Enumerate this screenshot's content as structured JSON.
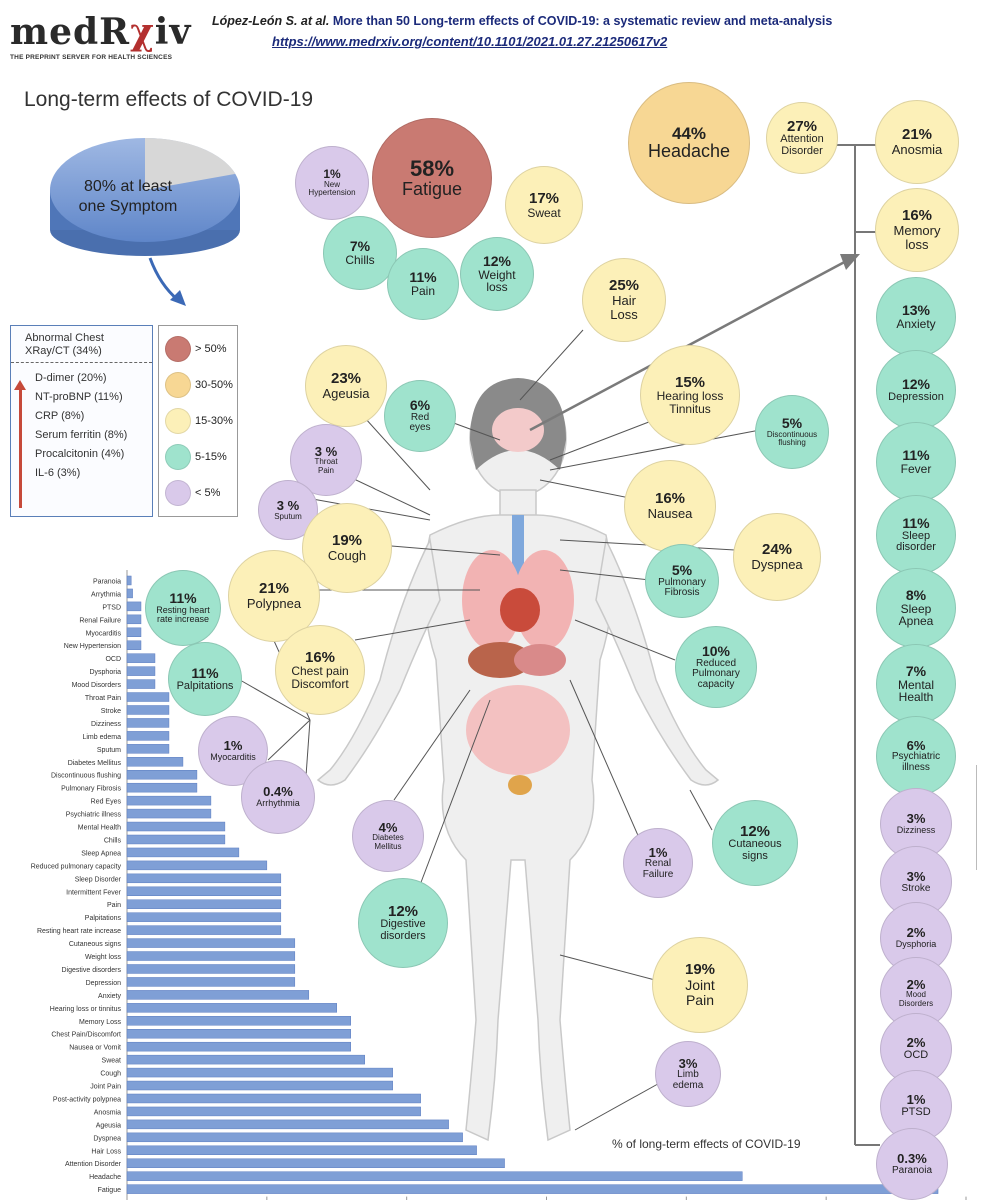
{
  "header": {
    "logo_prefix": "medR",
    "logo_accent": "χ",
    "logo_suffix": "iv",
    "logo_tagline": "THE PREPRINT SERVER FOR HEALTH SCIENCES",
    "author": "López-León S. at al.",
    "paper_title": "More than 50 Long-term effects of COVID-19: a systematic review and meta-analysis",
    "url": "https://www.medrxiv.org/content/10.1101/2021.01.27.21250617v2"
  },
  "page_title": "Long-term effects of COVID-19",
  "pie": {
    "label": "80% at least\none Symptom",
    "value": 80
  },
  "legend": {
    "top_item": "Abnormal Chest\nXRay/CT (34%)",
    "items": [
      "D-dimer (20%)",
      "NT-proBNP (11%)",
      "CRP (8%)",
      "Serum ferritin (8%)",
      "Procalcitonin (4%)",
      "IL-6 (3%)"
    ]
  },
  "scale": [
    {
      "label": "> 50%",
      "color": "#c97a72"
    },
    {
      "label": "30-50%",
      "color": "#f7d794"
    },
    {
      "label": "15-30%",
      "color": "#fcf0b8"
    },
    {
      "label": "5-15%",
      "color": "#9fe3cd"
    },
    {
      "label": "< 5%",
      "color": "#d9c9ea"
    }
  ],
  "colors": {
    "bar": "#7f9fd6",
    "bar_edge": "#5b7cc0",
    "axis": "#999999",
    "arrow": "#7a7a7a"
  },
  "footnote": "% of long-term effects of COVID-19",
  "bubbles": [
    {
      "pct": "58%",
      "label": "Fatigue",
      "cat": ">50"
    },
    {
      "pct": "44%",
      "label": "Headache",
      "cat": "30-50"
    },
    {
      "pct": "27%",
      "label": "Attention\nDisorder",
      "cat": "15-30"
    },
    {
      "pct": "21%",
      "label": "Anosmia",
      "cat": "15-30"
    },
    {
      "pct": "16%",
      "label": "Memory\nloss",
      "cat": "15-30"
    },
    {
      "pct": "13%",
      "label": "Anxiety",
      "cat": "5-15"
    },
    {
      "pct": "12%",
      "label": "Depression",
      "cat": "5-15"
    },
    {
      "pct": "11%",
      "label": "Fever",
      "cat": "5-15"
    },
    {
      "pct": "11%",
      "label": "Sleep\ndisorder",
      "cat": "5-15"
    },
    {
      "pct": "8%",
      "label": "Sleep\nApnea",
      "cat": "5-15"
    },
    {
      "pct": "7%",
      "label": "Mental\nHealth",
      "cat": "5-15"
    },
    {
      "pct": "6%",
      "label": "Psychiatric\nillness",
      "cat": "5-15"
    },
    {
      "pct": "3%",
      "label": "Dizziness",
      "cat": "<5"
    },
    {
      "pct": "3%",
      "label": "Stroke",
      "cat": "<5"
    },
    {
      "pct": "2%",
      "label": "Dysphoria",
      "cat": "<5"
    },
    {
      "pct": "2%",
      "label": "Mood\nDisorders",
      "cat": "<5"
    },
    {
      "pct": "2%",
      "label": "OCD",
      "cat": "<5"
    },
    {
      "pct": "1%",
      "label": "PTSD",
      "cat": "<5"
    },
    {
      "pct": "0.3%",
      "label": "Paranoia",
      "cat": "<5"
    },
    {
      "pct": "1%",
      "label": "New\nHypertension",
      "cat": "<5"
    },
    {
      "pct": "17%",
      "label": "Sweat",
      "cat": "15-30"
    },
    {
      "pct": "7%",
      "label": "Chills",
      "cat": "5-15"
    },
    {
      "pct": "11%",
      "label": "Pain",
      "cat": "5-15"
    },
    {
      "pct": "12%",
      "label": "Weight\nloss",
      "cat": "5-15"
    },
    {
      "pct": "25%",
      "label": "Hair\nLoss",
      "cat": "15-30"
    },
    {
      "pct": "23%",
      "label": "Ageusia",
      "cat": "15-30"
    },
    {
      "pct": "6%",
      "label": "Red\neyes",
      "cat": "5-15"
    },
    {
      "pct": "15%",
      "label": "Hearing loss\nTinnitus",
      "cat": "15-30"
    },
    {
      "pct": "5%",
      "label": "Discontinuous\nflushing",
      "cat": "5-15"
    },
    {
      "pct": "3 %",
      "label": "Throat\nPain",
      "cat": "<5"
    },
    {
      "pct": "3 %",
      "label": "Sputum",
      "cat": "<5"
    },
    {
      "pct": "16%",
      "label": "Nausea",
      "cat": "15-30"
    },
    {
      "pct": "19%",
      "label": "Cough",
      "cat": "15-30"
    },
    {
      "pct": "24%",
      "label": "Dyspnea",
      "cat": "15-30"
    },
    {
      "pct": "21%",
      "label": "Polypnea",
      "cat": "15-30"
    },
    {
      "pct": "5%",
      "label": "Pulmonary\nFibrosis",
      "cat": "5-15"
    },
    {
      "pct": "11%",
      "label": "Resting heart\nrate increase",
      "cat": "5-15"
    },
    {
      "pct": "16%",
      "label": "Chest pain\nDiscomfort",
      "cat": "15-30"
    },
    {
      "pct": "10%",
      "label": "Reduced\nPulmonary\ncapacity",
      "cat": "5-15"
    },
    {
      "pct": "11%",
      "label": "Palpitations",
      "cat": "5-15"
    },
    {
      "pct": "1%",
      "label": "Myocarditis",
      "cat": "<5"
    },
    {
      "pct": "0.4%",
      "label": "Arrhythmia",
      "cat": "<5"
    },
    {
      "pct": "4%",
      "label": "Diabetes\nMellitus",
      "cat": "<5"
    },
    {
      "pct": "1%",
      "label": "Renal\nFailure",
      "cat": "<5"
    },
    {
      "pct": "12%",
      "label": "Cutaneous\nsigns",
      "cat": "5-15"
    },
    {
      "pct": "12%",
      "label": "Digestive\ndisorders",
      "cat": "5-15"
    },
    {
      "pct": "19%",
      "label": "Joint\nPain",
      "cat": "15-30"
    },
    {
      "pct": "3%",
      "label": "Limb\nedema",
      "cat": "<5"
    }
  ],
  "chart_data": {
    "type": "bar",
    "orientation": "horizontal",
    "title": "% of long-term effects of COVID-19",
    "xlim": [
      0,
      60
    ],
    "xticks": [
      0,
      10,
      20,
      30,
      40,
      50,
      60
    ],
    "categories": [
      "Paranoia",
      "Arrythmia",
      "PTSD",
      "Renal Failure",
      "Myocarditis",
      "New Hypertension",
      "OCD",
      "Dysphoria",
      "Mood Disorders",
      "Throat Pain",
      "Stroke",
      "Dizziness",
      "Limb edema",
      "Sputum",
      "Diabetes Mellitus",
      "Discontinuous flushing",
      "Pulmonary Fibrosis",
      "Red Eyes",
      "Psychiatric illness",
      "Mental Health",
      "Chills",
      "Sleep Apnea",
      "Reduced pulmonary capacity",
      "Sleep Disorder",
      "Intermittent Fever",
      "Pain",
      "Palpitations",
      "Resting heart rate increase",
      "Cutaneous signs",
      "Weight loss",
      "Digestive disorders",
      "Depression",
      "Anxiety",
      "Hearing loss or tinnitus",
      "Memory Loss",
      "Chest Pain/Discomfort",
      "Nausea or Vomit",
      "Sweat",
      "Cough",
      "Joint Pain",
      "Post-activity polypnea",
      "Anosmia",
      "Ageusia",
      "Dyspnea",
      "Hair Loss",
      "Attention Disorder",
      "Headache",
      "Fatigue"
    ],
    "values": [
      0.3,
      0.4,
      1,
      1,
      1,
      1,
      2,
      2,
      2,
      3,
      3,
      3,
      3,
      3,
      4,
      5,
      5,
      6,
      6,
      7,
      7,
      8,
      10,
      11,
      11,
      11,
      11,
      11,
      12,
      12,
      12,
      12,
      13,
      15,
      16,
      16,
      16,
      17,
      19,
      19,
      21,
      21,
      23,
      24,
      25,
      27,
      44,
      58
    ]
  }
}
